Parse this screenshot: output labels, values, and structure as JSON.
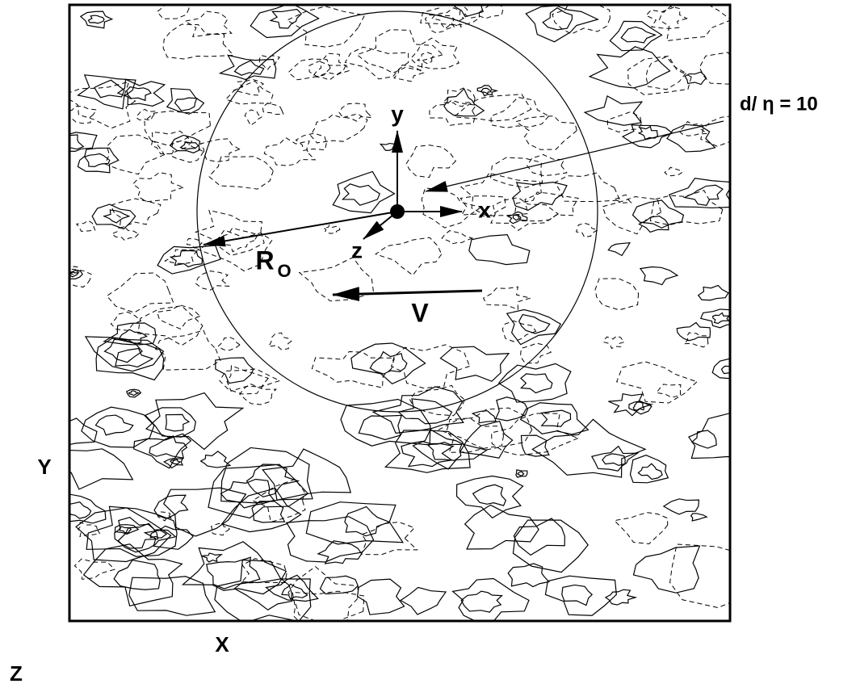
{
  "figure": {
    "annotation": "d/ η = 10",
    "local_axes": {
      "y": "y",
      "x": "x",
      "z": "z"
    },
    "radius_label": {
      "main": "R",
      "subscript": "O"
    },
    "velocity_label": "V",
    "global_axes": {
      "y": "Y",
      "x": "X",
      "z": "Z"
    }
  }
}
